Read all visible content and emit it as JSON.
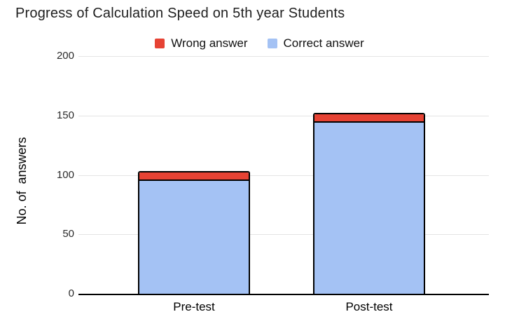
{
  "chart_data": {
    "type": "bar",
    "stacked": true,
    "title": "Progress of Calculation Speed on 5th year Students",
    "categories": [
      "Pre-test",
      "Post-test"
    ],
    "series": [
      {
        "name": "Wrong answer",
        "color": "#e64334",
        "values": [
          7,
          7
        ]
      },
      {
        "name": "Correct answer",
        "color": "#a4c2f4",
        "values": [
          96,
          145
        ]
      }
    ],
    "xlabel": "",
    "ylabel": "No. of  answers",
    "yticks": [
      0,
      50,
      100,
      150,
      200
    ],
    "ylim": [
      0,
      200
    ],
    "grid": true,
    "legend_position": "top",
    "colors": {
      "bar_outline": "#000000",
      "gridline": "#e4e4e4",
      "baseline": "#000000",
      "title_text": "#1f1f1f",
      "wrong_fill": "#e64334",
      "correct_fill": "#a4c2f4"
    }
  }
}
